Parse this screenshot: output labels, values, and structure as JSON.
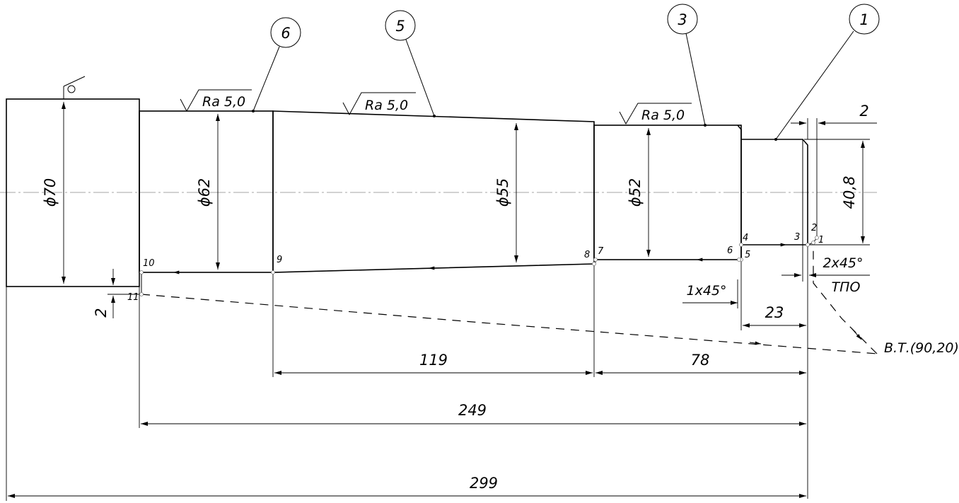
{
  "diameters": {
    "d70": "ϕ70",
    "d62": "ϕ62",
    "d55": "ϕ55",
    "d52": "ϕ52",
    "d408": "40,8"
  },
  "roughness": [
    "Ra 5,0",
    "Ra 5,0",
    "Ra 5,0"
  ],
  "balloons": [
    "6",
    "5",
    "3",
    "1"
  ],
  "lengths": {
    "l119": "119",
    "l78": "78",
    "l249": "249",
    "l299": "299",
    "l23": "23",
    "l2_top": "2",
    "l2_left": "2"
  },
  "chamfers": {
    "c1": "1x45°",
    "c2": "2x45°"
  },
  "labels": {
    "tpo": "ТПО",
    "tool_change": "В.Т.(90,20)"
  },
  "points": [
    "1",
    "2",
    "3",
    "4",
    "5",
    "6",
    "7",
    "8",
    "9",
    "10",
    "11"
  ]
}
